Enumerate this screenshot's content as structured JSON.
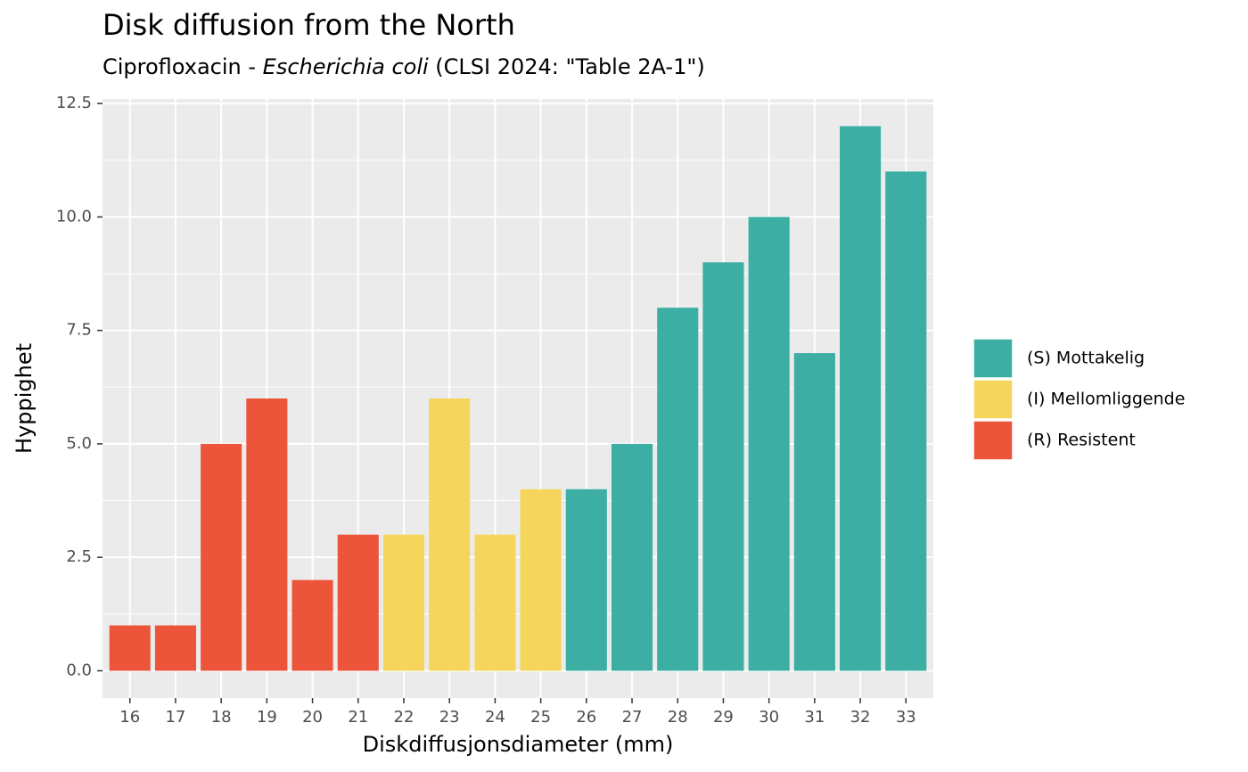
{
  "chart_data": {
    "type": "bar",
    "title": "Disk diffusion from the North",
    "subtitle": [
      "Ciprofloxacin - ",
      "Escherichia coli",
      " (CLSI 2024: \"Table 2A-1\")"
    ],
    "x_label": "Diskdiffusjonsdiameter (mm)",
    "y_label": "Hyppighet",
    "categories": [
      16,
      17,
      18,
      19,
      20,
      21,
      22,
      23,
      24,
      25,
      26,
      27,
      28,
      29,
      30,
      31,
      32,
      33
    ],
    "series": [
      {
        "name": "(S) Mottakelig",
        "color": "#3caea3",
        "values": [
          null,
          null,
          null,
          null,
          null,
          null,
          null,
          null,
          null,
          null,
          4,
          5,
          8,
          9,
          10,
          7,
          12,
          11
        ]
      },
      {
        "name": "(I) Mellomliggende",
        "color": "#f6d55c",
        "values": [
          null,
          null,
          null,
          null,
          null,
          null,
          3,
          6,
          3,
          4,
          null,
          null,
          null,
          null,
          null,
          null,
          null,
          null
        ]
      },
      {
        "name": "(R) Resistent",
        "color": "#ed553b",
        "values": [
          1,
          1,
          5,
          6,
          2,
          3,
          null,
          null,
          null,
          null,
          null,
          null,
          null,
          null,
          null,
          null,
          null,
          null
        ]
      }
    ],
    "ylim": [
      -0.6,
      12.6
    ],
    "yticks": [
      {
        "value": 0,
        "label": "0.0"
      },
      2.5,
      {
        "value": 5,
        "label": "5.0"
      },
      7.5,
      {
        "value": 10,
        "label": "10.0"
      },
      12.5
    ],
    "grid": true,
    "legend": "right"
  }
}
